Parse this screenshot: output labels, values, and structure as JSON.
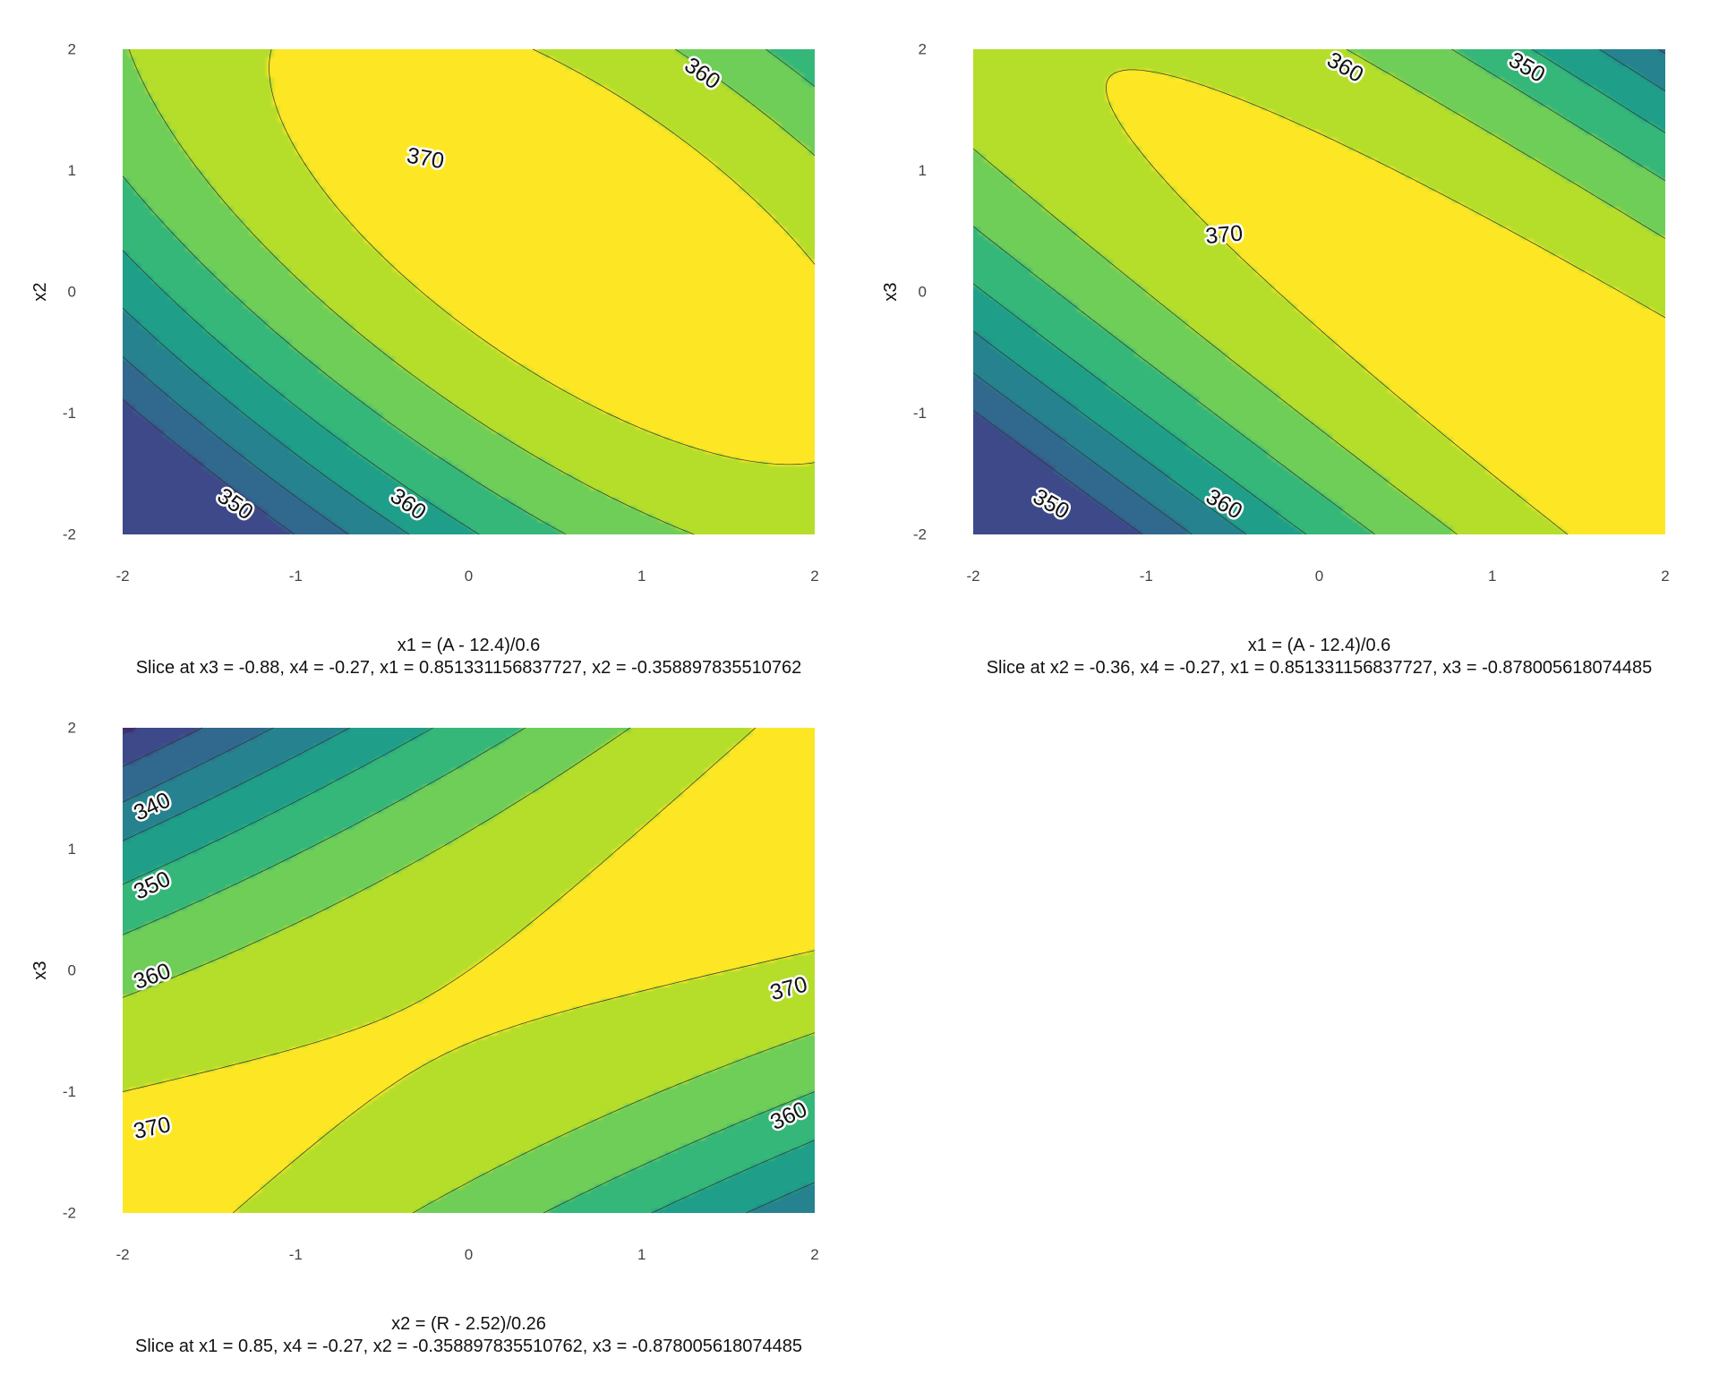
{
  "chart_data": [
    {
      "type": "contour",
      "xlabel": "x1 = (A - 12.4)/0.6",
      "subtitle": "Slice at x3 = -0.88, x4 = -0.27, x1 = 0.851331156837727, x2 = -0.358897835510762",
      "ylabel": "x2",
      "xlim": [
        -2,
        2
      ],
      "ylim": [
        -2,
        2
      ],
      "x_ticks": [
        "-2",
        "-1",
        "0",
        "1",
        "2"
      ],
      "y_ticks": [
        "-2",
        "-1",
        "0",
        "1",
        "2"
      ],
      "surface": {
        "b0": 371.5,
        "bx": 4.8,
        "by": 4.2,
        "bxx": -2.6,
        "byy": -2.2,
        "bxy": -3.4
      },
      "levels": [
        340,
        345,
        350,
        355,
        360,
        365,
        370
      ],
      "contour_labels": [
        {
          "text": "370",
          "x": -0.25,
          "y": 1.1,
          "angle": 10
        },
        {
          "text": "360",
          "x": 1.35,
          "y": 1.8,
          "angle": 35
        },
        {
          "text": "350",
          "x": -1.35,
          "y": -1.75,
          "angle": 35
        },
        {
          "text": "360",
          "x": -0.35,
          "y": -1.75,
          "angle": 35
        }
      ]
    },
    {
      "type": "contour",
      "xlabel": "x1 = (A - 12.4)/0.6",
      "subtitle": "Slice at x2 = -0.36, x4 = -0.27, x1 = 0.851331156837727, x3 = -0.878005618074485",
      "ylabel": "x3",
      "xlim": [
        -2,
        2
      ],
      "ylim": [
        -2,
        2
      ],
      "x_ticks": [
        "-2",
        "-1",
        "0",
        "1",
        "2"
      ],
      "y_ticks": [
        "-2",
        "-1",
        "0",
        "1",
        "2"
      ],
      "surface": {
        "b0": 371.0,
        "bx": 3.6,
        "by": 2.5,
        "bxx": -2.4,
        "byy": -2.5,
        "bxy": -4.8
      },
      "levels": [
        340,
        345,
        350,
        355,
        360,
        365,
        370
      ],
      "contour_labels": [
        {
          "text": "370",
          "x": -0.55,
          "y": 0.47,
          "angle": -5
        },
        {
          "text": "360",
          "x": 0.15,
          "y": 1.85,
          "angle": 30
        },
        {
          "text": "350",
          "x": 1.2,
          "y": 1.85,
          "angle": 30
        },
        {
          "text": "350",
          "x": -1.55,
          "y": -1.75,
          "angle": 30
        },
        {
          "text": "360",
          "x": -0.55,
          "y": -1.75,
          "angle": 30
        }
      ]
    },
    {
      "type": "contour",
      "xlabel": "x2 = (R - 2.52)/0.26",
      "subtitle": "Slice at x1 = 0.85, x4 = -0.27, x2 = -0.358897835510762, x3 = -0.878005618074485",
      "ylabel": "x3",
      "xlim": [
        -2,
        2
      ],
      "ylim": [
        -2,
        2
      ],
      "x_ticks": [
        "-2",
        "-1",
        "0",
        "1",
        "2"
      ],
      "y_ticks": [
        "-2",
        "-1",
        "0",
        "1",
        "2"
      ],
      "surface": {
        "b0": 370.0,
        "bx": 1.5,
        "by": -1.5,
        "bxx": -1.0,
        "byy": -2.5,
        "bxy": 4.0
      },
      "levels": [
        335,
        340,
        345,
        350,
        355,
        360,
        365,
        370
      ],
      "contour_labels": [
        {
          "text": "340",
          "x": -1.83,
          "y": 1.35,
          "angle": -25
        },
        {
          "text": "350",
          "x": -1.83,
          "y": 0.7,
          "angle": -25
        },
        {
          "text": "360",
          "x": -1.83,
          "y": -0.05,
          "angle": -20
        },
        {
          "text": "370",
          "x": -1.83,
          "y": -1.3,
          "angle": -12
        },
        {
          "text": "370",
          "x": 1.85,
          "y": -0.15,
          "angle": -15
        },
        {
          "text": "360",
          "x": 1.85,
          "y": -1.2,
          "angle": -25
        }
      ]
    }
  ],
  "colors": {
    "palette": [
      "#440154",
      "#482878",
      "#3e4989",
      "#31688e",
      "#26828e",
      "#1f9e89",
      "#35b779",
      "#6ece58",
      "#b5de2b",
      "#fde725"
    ],
    "contour_line": "#333333"
  }
}
